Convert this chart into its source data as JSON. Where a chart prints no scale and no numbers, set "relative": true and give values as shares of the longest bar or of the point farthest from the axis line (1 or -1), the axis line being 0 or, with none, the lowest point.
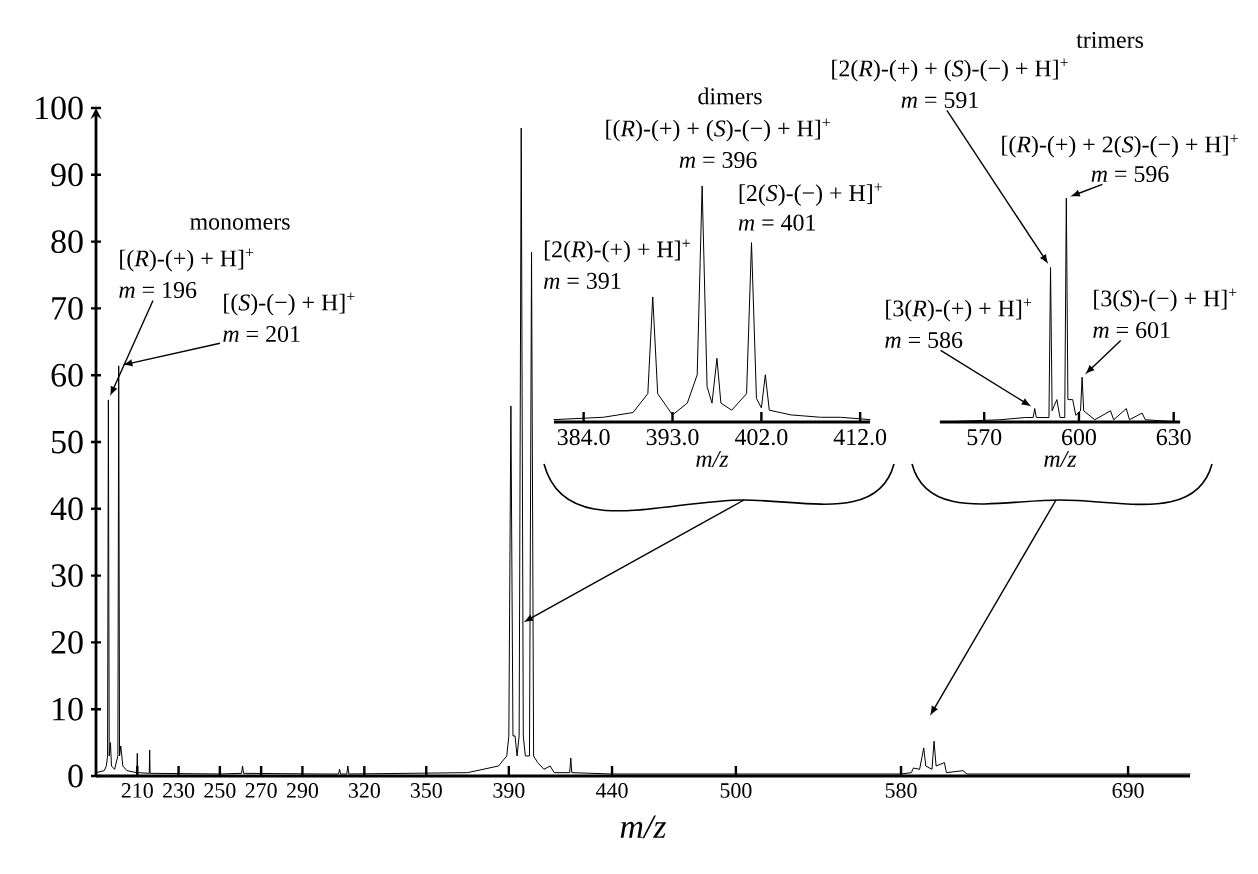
{
  "chart_data": [
    {
      "type": "line",
      "xlabel": "m/z",
      "xlim": [
        190,
        720
      ],
      "xticks": [
        210,
        230,
        250,
        270,
        290,
        320,
        350,
        390,
        440,
        500,
        580,
        690
      ],
      "ylim": [
        0,
        100
      ],
      "yticks": [
        0,
        10,
        20,
        30,
        40,
        50,
        60,
        70,
        80,
        90,
        100
      ],
      "series": [
        {
          "color": "#000000",
          "x": [
            190,
            194,
            195,
            195.6,
            196,
            196.4,
            197,
            197.5,
            199,
            200.6,
            201,
            201.4,
            202,
            203,
            205,
            209.8,
            210,
            210.2,
            215.8,
            216,
            216.2,
            250,
            260.5,
            261,
            261.5,
            300,
            307.5,
            308,
            308.5,
            311.5,
            312,
            312.5,
            370,
            385,
            389,
            390,
            391,
            392,
            393,
            394,
            395,
            396,
            397,
            398,
            400,
            401,
            402,
            404,
            407,
            410,
            412,
            419.5,
            420,
            420.5,
            440,
            580,
            585,
            586,
            589,
            591,
            592,
            595,
            596,
            597,
            601,
            602,
            610,
            612,
            720
          ],
          "values": [
            0.5,
            0.8,
            1.5,
            3,
            56.3,
            3,
            5,
            1.5,
            1,
            3,
            61.4,
            3,
            4.5,
            1.5,
            0.8,
            0.5,
            3.4,
            0.5,
            0.4,
            3.9,
            0.4,
            0.3,
            0.4,
            1.5,
            0.4,
            0.3,
            0.3,
            1,
            0.3,
            0.3,
            1.5,
            0.3,
            0.5,
            1.5,
            3,
            6,
            55.4,
            6,
            6,
            3,
            6,
            97,
            6,
            3,
            3,
            78.4,
            3,
            2,
            1,
            1.5,
            0.5,
            0.5,
            2.7,
            0.5,
            0.3,
            0.3,
            0.5,
            1.2,
            1,
            4.2,
            1.5,
            1,
            5.2,
            1.5,
            2,
            0.5,
            0.8,
            0.3,
            0.3
          ]
        }
      ],
      "annotations": [
        "monomers",
        "[(*R*)-(+) + H]$^{+}$",
        {
          "text": "*m* = 196",
          "x": 196,
          "y": 56.3
        },
        "[(*S*)-(−) + H]$^{+}$",
        {
          "text": "*m* = 201",
          "x": 201,
          "y": 61.4
        }
      ]
    },
    {
      "type": "line",
      "title": "dimers",
      "xlabel": "m/z",
      "relative": true,
      "xlim": [
        381,
        413
      ],
      "xticks": [
        {
          "value": 384,
          "label": "384.0"
        },
        {
          "value": 393,
          "label": "393.0"
        },
        {
          "value": 402,
          "label": "402.0"
        },
        {
          "value": 412,
          "label": "412.0"
        }
      ],
      "series": [
        {
          "color": "#000000",
          "x": [
            381,
            386,
            389,
            390.5,
            391,
            391.5,
            392.5,
            393,
            394.5,
            395.5,
            396,
            396.5,
            397,
            397.5,
            397.9,
            399,
            400.5,
            401,
            401.5,
            402,
            402.4,
            402.8,
            405,
            408,
            410,
            413
          ],
          "values": [
            0.01,
            0.02,
            0.04,
            0.12,
            0.53,
            0.12,
            0.06,
            0.03,
            0.08,
            0.2,
            1,
            0.15,
            0.08,
            0.27,
            0.08,
            0.05,
            0.12,
            0.76,
            0.1,
            0.06,
            0.2,
            0.05,
            0.03,
            0.02,
            0.02,
            0.01
          ]
        }
      ],
      "annotations": [
        {
          "text": "[(*R*)-(+) + (*S*)-(−) + H]$^{+}$",
          "x": 396,
          "y": 1
        },
        {
          "text": "*m* = 396",
          "x": 396,
          "y": 1
        },
        {
          "text": "[2(*S*)-(−) + H]$^{+}$",
          "x": 401,
          "y": 0.76
        },
        {
          "text": "*m* = 401",
          "x": 401,
          "y": 0.76
        },
        {
          "text": "[2(*R*)-(+) + H]$^{+}$",
          "x": 391,
          "y": 0.53
        },
        {
          "text": "*m* = 391",
          "x": 391,
          "y": 0.53
        }
      ]
    },
    {
      "type": "line",
      "title": "trimers",
      "xlabel": "m/z",
      "relative": true,
      "xlim": [
        556,
        632
      ],
      "xticks": [
        570,
        600,
        630
      ],
      "series": [
        {
          "color": "#000000",
          "x": [
            556,
            575,
            583,
            585.5,
            586,
            586.5,
            590.5,
            591,
            591.5,
            593,
            594,
            595.5,
            596,
            596.5,
            598,
            599,
            600.5,
            601,
            601.5,
            605,
            610,
            611,
            615,
            616,
            620,
            621,
            632
          ],
          "values": [
            0,
            0.01,
            0.02,
            0.02,
            0.06,
            0.02,
            0.02,
            0.69,
            0.05,
            0.1,
            0.02,
            0.02,
            1,
            0.1,
            0.1,
            0.03,
            0.05,
            0.2,
            0.05,
            0.01,
            0.05,
            0.01,
            0.06,
            0.01,
            0.04,
            0.01,
            0
          ]
        }
      ],
      "annotations": [
        "[2(*R*)-(+) + (*S*)-(−) + H]$^{+}$",
        {
          "text": "*m* = 591",
          "x": 591,
          "y": 0.69
        },
        "[(*R*)-(+) + 2(*S*)-(−) + H]$^{+}$",
        {
          "text": "*m* = 596",
          "x": 596,
          "y": 1
        },
        "[3(*R*)-(+) + H]$^{+}$",
        {
          "text": "*m* = 586",
          "x": 586,
          "y": 0.06
        },
        "[3(*S*)-(−) + H]$^{+}$",
        {
          "text": "*m* = 601",
          "x": 601,
          "y": 0.2
        }
      ]
    }
  ]
}
